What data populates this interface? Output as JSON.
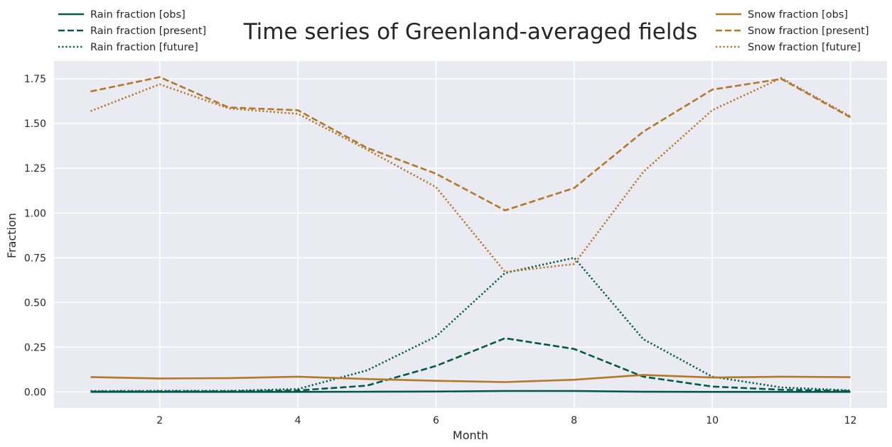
{
  "chart_data": {
    "type": "line",
    "title": "Time series of Greenland-averaged fields",
    "xlabel": "Month",
    "ylabel": "Fraction",
    "xlim": [
      0.47,
      12.53
    ],
    "ylim": [
      -0.09,
      1.85
    ],
    "xticks": [
      2,
      4,
      6,
      8,
      10,
      12
    ],
    "yticks": [
      0.0,
      0.25,
      0.5,
      0.75,
      1.0,
      1.25,
      1.5,
      1.75
    ],
    "ytick_labels": [
      "0.00",
      "0.25",
      "0.50",
      "0.75",
      "1.00",
      "1.25",
      "1.50",
      "1.75"
    ],
    "grid": true,
    "background": "#eaeaf2",
    "legend_left_placement": "upper-left-outside",
    "legend_right_placement": "upper-right-outside",
    "x": [
      1,
      2,
      3,
      4,
      5,
      6,
      7,
      8,
      9,
      10,
      11,
      12
    ],
    "series": [
      {
        "name": "Rain fraction [obs]",
        "color": "#03594c",
        "style": "solid",
        "group": "left",
        "values": [
          0.0,
          0.0,
          0.0,
          0.0,
          0.001,
          0.002,
          0.005,
          0.005,
          0.001,
          0.0,
          0.0,
          0.0
        ]
      },
      {
        "name": "Rain fraction [present]",
        "color": "#03594c",
        "style": "dashed",
        "group": "left",
        "values": [
          0.002,
          0.003,
          0.003,
          0.008,
          0.035,
          0.145,
          0.3,
          0.24,
          0.085,
          0.03,
          0.012,
          0.005
        ]
      },
      {
        "name": "Rain fraction [future]",
        "color": "#03594c",
        "style": "dotted",
        "group": "left",
        "values": [
          0.005,
          0.006,
          0.006,
          0.016,
          0.12,
          0.31,
          0.665,
          0.75,
          0.295,
          0.085,
          0.025,
          0.008
        ]
      },
      {
        "name": "Snow fraction [obs]",
        "color": "#b2772a",
        "style": "solid",
        "group": "right",
        "values": [
          0.083,
          0.075,
          0.077,
          0.085,
          0.072,
          0.062,
          0.055,
          0.068,
          0.095,
          0.08,
          0.085,
          0.082
        ]
      },
      {
        "name": "Snow fraction [present]",
        "color": "#b2772a",
        "style": "dashed",
        "group": "right",
        "values": [
          1.68,
          1.76,
          1.59,
          1.575,
          1.365,
          1.22,
          1.015,
          1.14,
          1.455,
          1.69,
          1.75,
          1.535
        ]
      },
      {
        "name": "Snow fraction [future]",
        "color": "#b2772a",
        "style": "dotted",
        "group": "right",
        "values": [
          1.57,
          1.72,
          1.585,
          1.555,
          1.355,
          1.145,
          0.67,
          0.715,
          1.23,
          1.575,
          1.755,
          1.54
        ]
      }
    ]
  }
}
